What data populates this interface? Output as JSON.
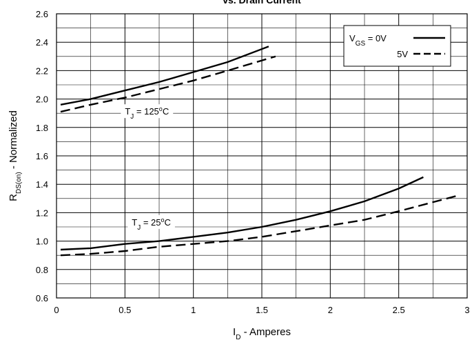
{
  "chart_data": {
    "type": "line",
    "title": "vs. Drain Current",
    "x_label": {
      "main": "I",
      "sub": "D",
      "rest": " - Amperes"
    },
    "y_label": {
      "main": "R",
      "sub": "DS(on)",
      "rest": " - Normalized"
    },
    "xlim": [
      0,
      3
    ],
    "ylim": [
      0.6,
      2.6
    ],
    "xticks": [
      0,
      0.5,
      1,
      1.5,
      2,
      2.5,
      3
    ],
    "yticks": [
      0.6,
      0.8,
      {
        "value": 1,
        "label": "1.0"
      },
      1.2,
      1.4,
      1.6,
      1.8,
      {
        "value": 2,
        "label": "2.0"
      },
      2.2,
      2.4,
      2.6
    ],
    "minor_xgrid": [
      0.25,
      0.75,
      1.25,
      1.75,
      2.25,
      2.75
    ],
    "minor_ygrid": [
      0.7,
      0.9,
      1.1,
      1.3,
      1.5,
      1.7,
      1.9,
      2.1,
      2.3,
      2.5
    ],
    "grid": true,
    "color": "#000000",
    "legend_prefix": {
      "main": "V",
      "sub": "GS",
      "rest": " = "
    },
    "legend": [
      {
        "label": "0V",
        "dash": false
      },
      {
        "label": "5V",
        "dash": true
      }
    ],
    "annotations": [
      {
        "main": "T",
        "sub": "J",
        "rest": " = 125",
        "sup": "o",
        "end": "C",
        "x": 0.5,
        "y": 1.9
      },
      {
        "main": "T",
        "sub": "J",
        "rest": " = 25",
        "sup": "o",
        "end": "C",
        "x": 0.55,
        "y": 1.12
      }
    ],
    "series": [
      {
        "dash": false,
        "x": [
          0.03,
          0.25,
          0.5,
          0.75,
          1.0,
          1.25,
          1.55
        ],
        "values": [
          1.96,
          2.0,
          2.06,
          2.12,
          2.19,
          2.26,
          2.37
        ]
      },
      {
        "dash": true,
        "x": [
          0.03,
          0.25,
          0.5,
          0.75,
          1.0,
          1.25,
          1.6
        ],
        "values": [
          1.91,
          1.96,
          2.01,
          2.07,
          2.13,
          2.2,
          2.3
        ]
      },
      {
        "dash": false,
        "x": [
          0.03,
          0.25,
          0.5,
          0.75,
          1.0,
          1.25,
          1.5,
          1.75,
          2.0,
          2.25,
          2.5,
          2.68
        ],
        "values": [
          0.94,
          0.95,
          0.98,
          1.0,
          1.03,
          1.06,
          1.1,
          1.15,
          1.21,
          1.28,
          1.37,
          1.45
        ]
      },
      {
        "dash": true,
        "x": [
          0.03,
          0.25,
          0.5,
          0.75,
          1.0,
          1.25,
          1.5,
          1.75,
          2.0,
          2.25,
          2.5,
          2.93
        ],
        "values": [
          0.9,
          0.91,
          0.93,
          0.96,
          0.98,
          1.0,
          1.03,
          1.07,
          1.11,
          1.15,
          1.21,
          1.32
        ]
      }
    ]
  }
}
